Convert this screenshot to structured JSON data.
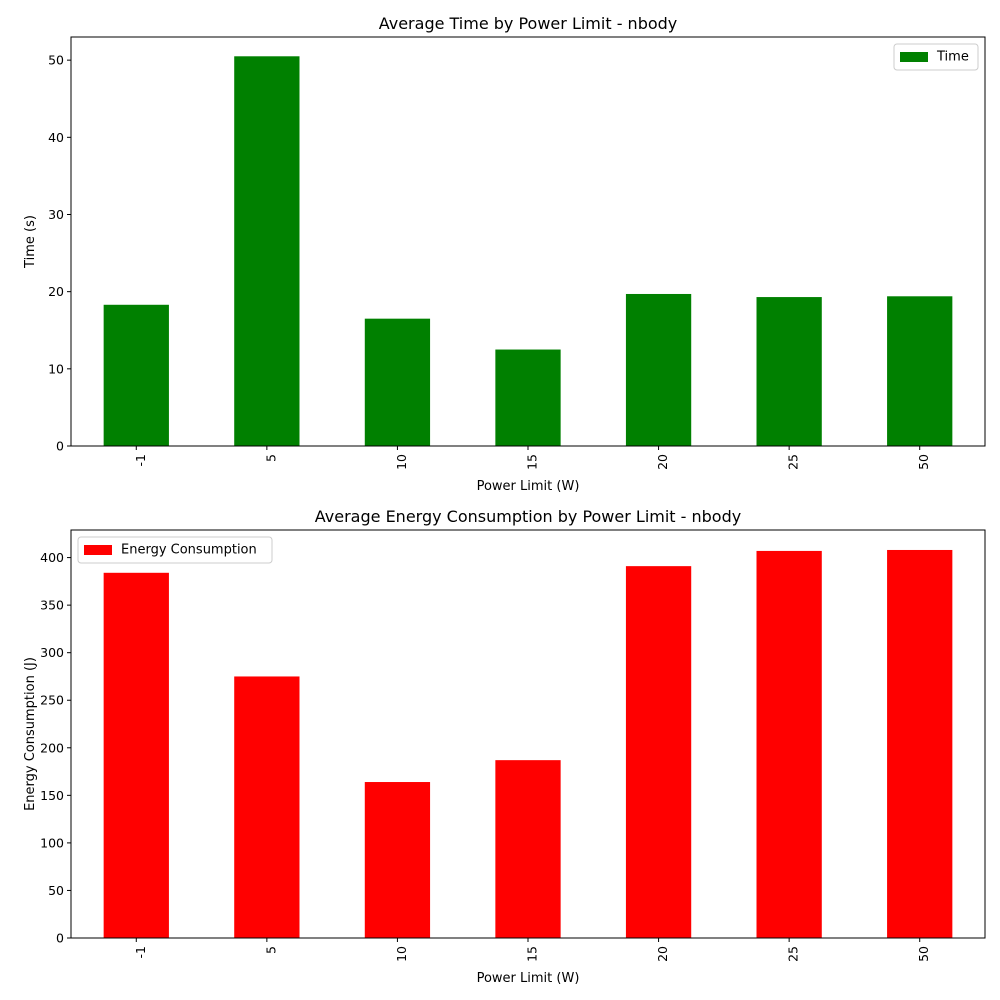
{
  "chart_data": [
    {
      "type": "bar",
      "title": "Average Time by Power Limit -  nbody",
      "xlabel": "Power Limit (W)",
      "ylabel": "Time (s)",
      "categories": [
        "-1",
        "5",
        "10",
        "15",
        "20",
        "25",
        "50"
      ],
      "series": [
        {
          "name": "Time",
          "color": "#008000",
          "values": [
            18.3,
            50.5,
            16.5,
            12.5,
            19.7,
            19.3,
            19.4
          ]
        }
      ],
      "ylim": [
        0,
        53
      ],
      "yticks": [
        0,
        10,
        20,
        30,
        40,
        50
      ],
      "legend": "top-right",
      "grid": false
    },
    {
      "type": "bar",
      "title": "Average Energy Consumption by Power Limit -  nbody",
      "xlabel": "Power Limit (W)",
      "ylabel": "Energy Consumption (J)",
      "categories": [
        "-1",
        "5",
        "10",
        "15",
        "20",
        "25",
        "50"
      ],
      "series": [
        {
          "name": "Energy Consumption",
          "color": "#ff0000",
          "values": [
            384,
            275,
            164,
            187,
            391,
            407,
            408
          ]
        }
      ],
      "ylim": [
        0,
        429
      ],
      "yticks": [
        0,
        50,
        100,
        150,
        200,
        250,
        300,
        350,
        400
      ],
      "legend": "top-left",
      "grid": false
    }
  ]
}
